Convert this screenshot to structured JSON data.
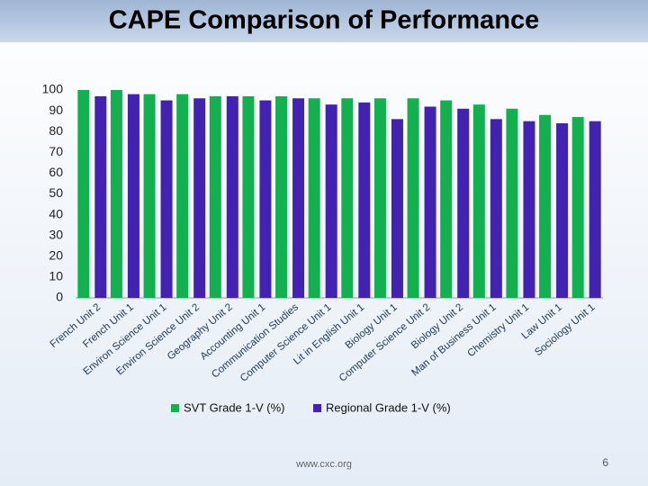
{
  "chart_data": {
    "type": "bar",
    "title": "CAPE Comparison of Performance",
    "categories": [
      "French Unit 2",
      "French Unit 1",
      "Environ Science Unit 1",
      "Environ Science Unit 2",
      "Geography Unit 2",
      "Accounting Unit 1",
      "Communication Studies",
      "Computer Science Unit 1",
      "Lit in English Unit 1",
      "Biology Unit 1",
      "Computer Science Unit 2",
      "Biology Unit 2",
      "Man of Business Unit 1",
      "Chemistry Unit 1",
      "Law Unit 1",
      "Sociology Unit 1"
    ],
    "series": [
      {
        "name": "SVT Grade 1-V (%)",
        "color": "#12b04e",
        "values": [
          100,
          100,
          98,
          98,
          97,
          97,
          97,
          96,
          96,
          96,
          96,
          95,
          93,
          91,
          88,
          87
        ]
      },
      {
        "name": "Regional Grade 1-V (%)",
        "color": "#4222b0",
        "values": [
          97,
          98,
          95,
          96,
          97,
          95,
          96,
          93,
          94,
          86,
          92,
          91,
          86,
          85,
          84,
          85
        ]
      }
    ],
    "ylim": [
      0,
      100
    ],
    "yticks": [
      0,
      10,
      20,
      30,
      40,
      50,
      60,
      70,
      80,
      90,
      100
    ]
  },
  "footer": {
    "url": "www.cxc.org",
    "page": "6"
  }
}
